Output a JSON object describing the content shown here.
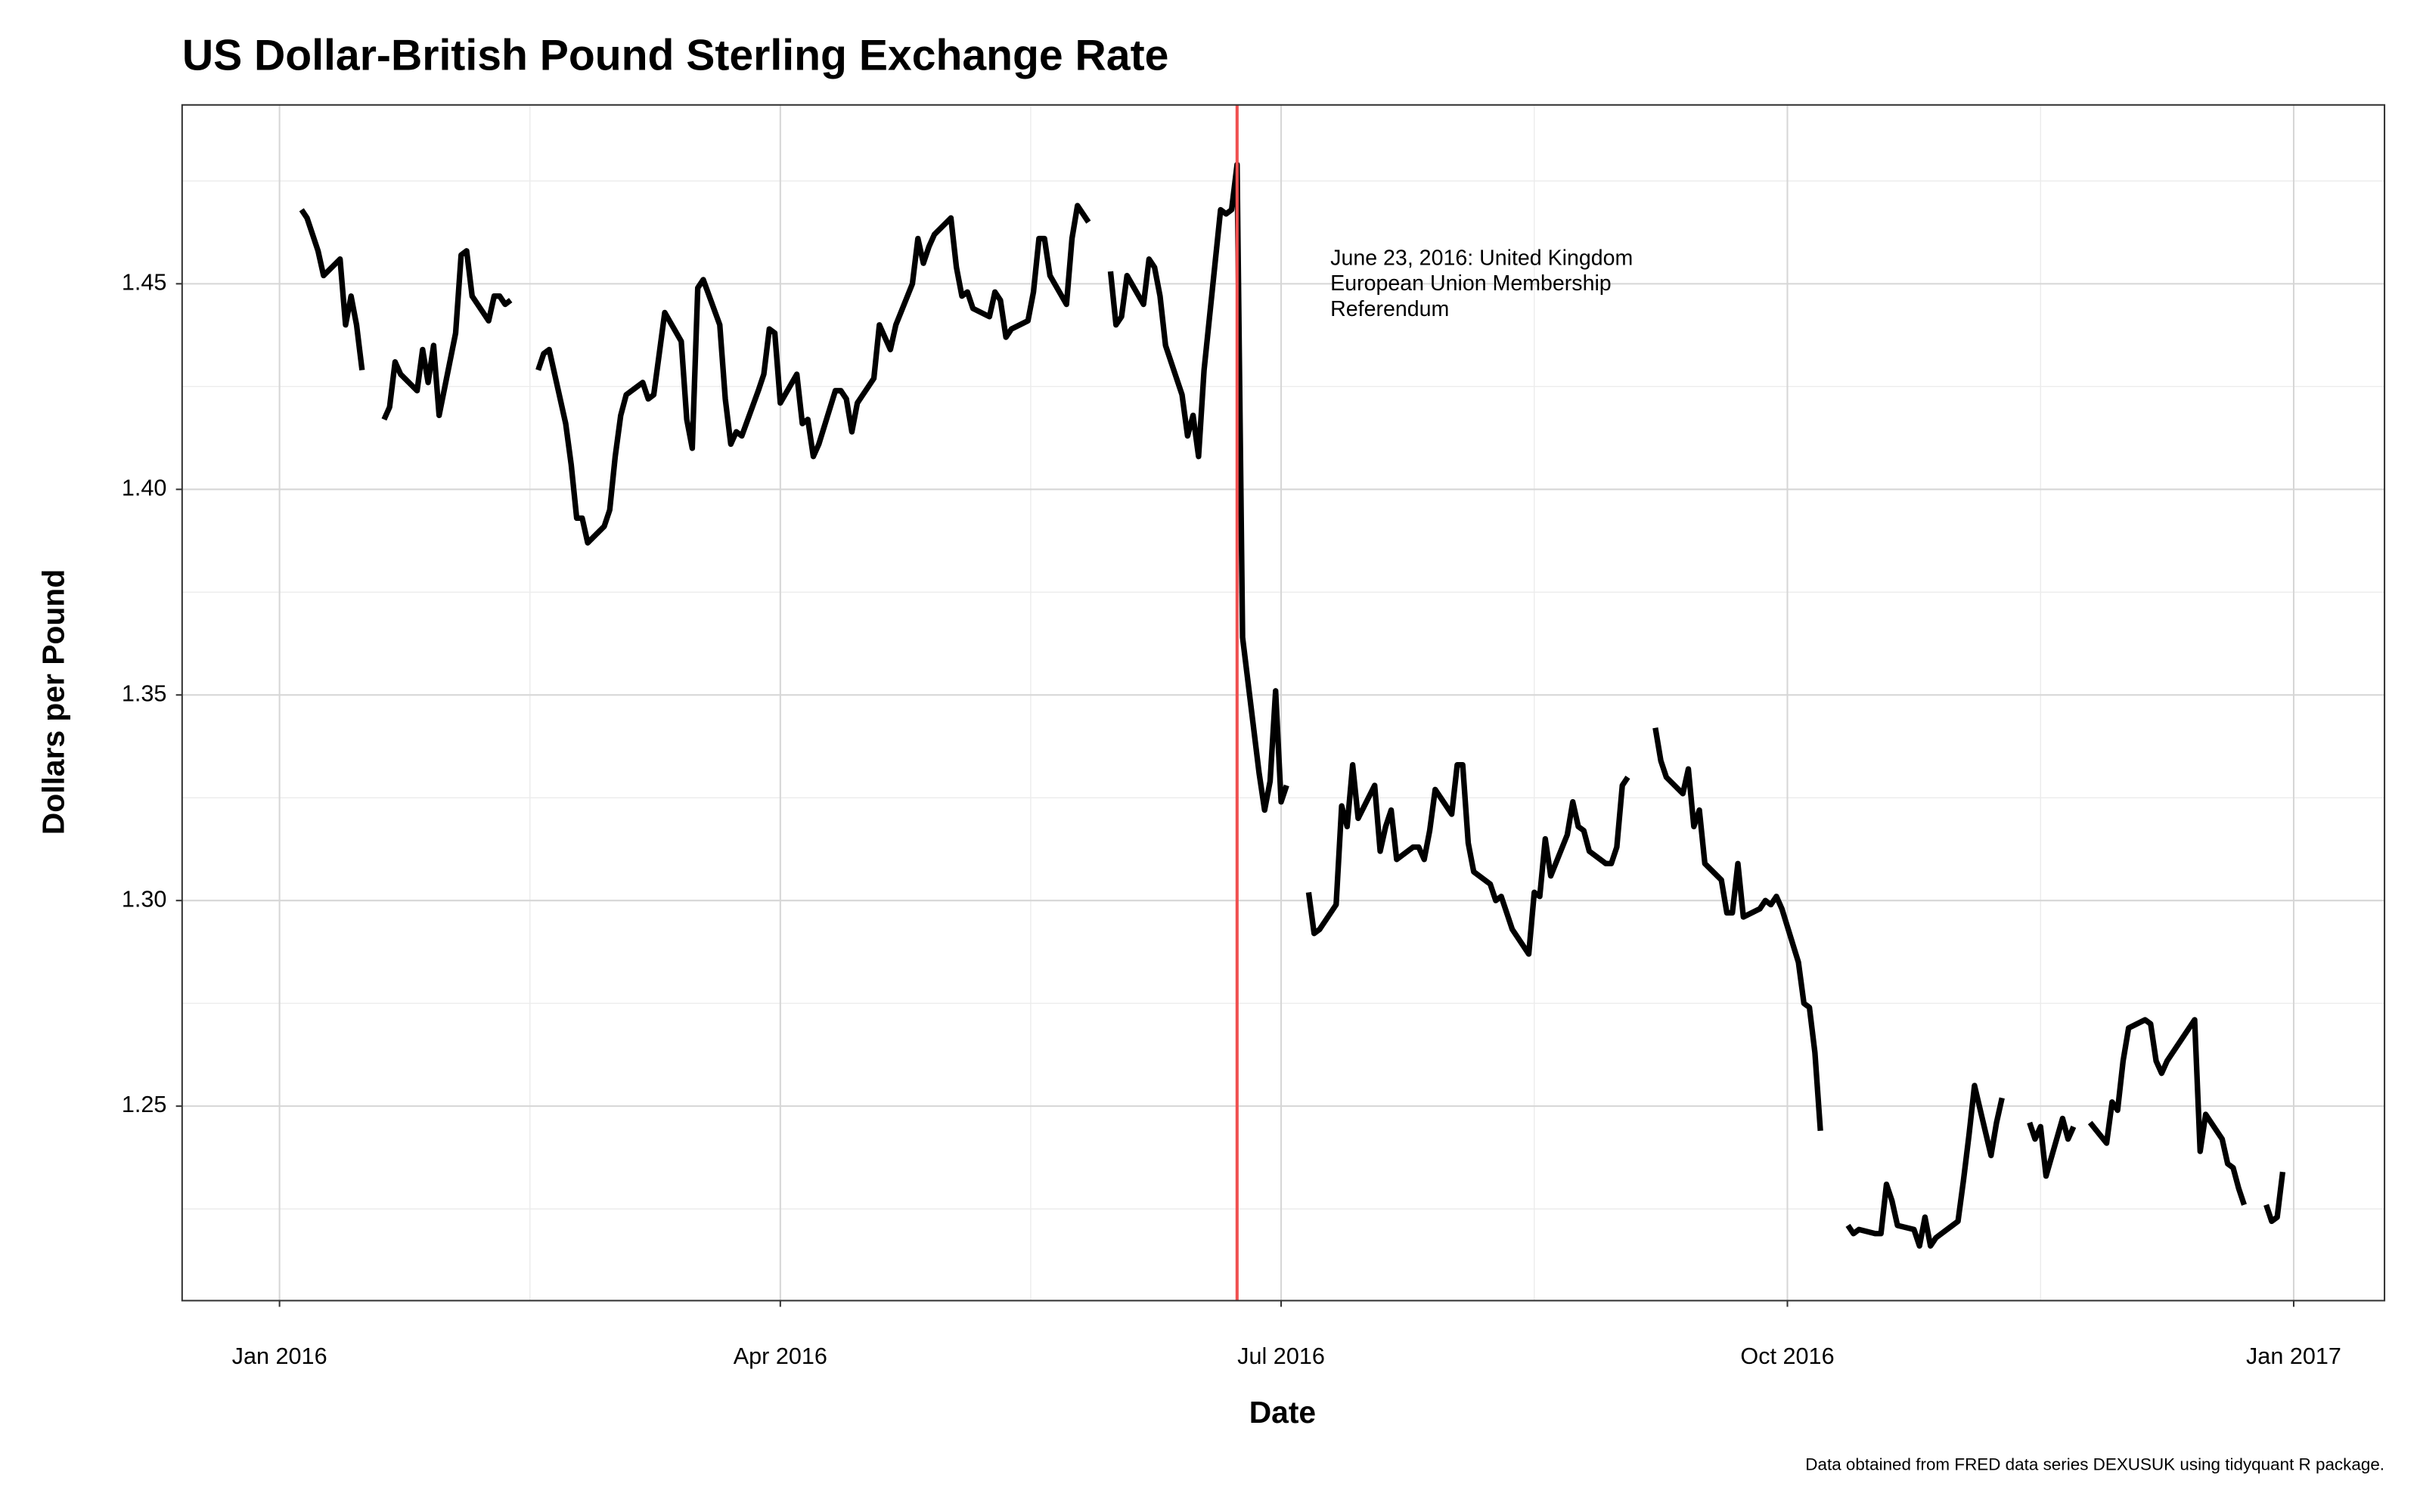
{
  "chart_data": {
    "type": "line",
    "title": "US Dollar-British Pound Sterling Exchange Rate",
    "x_label": "Date",
    "y_label": "Dollars per Pound",
    "caption": "Data obtained from FRED data series DEXUSUK using tidyquant R package.",
    "annotation": [
      "June 23, 2016: United Kingdom",
      "European Union Membership",
      "Referendum"
    ],
    "event_x": 174,
    "event_color": "#f05050",
    "grid": true,
    "xlim": [
      -17.7,
      382.5
    ],
    "xticks": [
      {
        "value": 0,
        "label": "Jan 2016"
      },
      {
        "value": 91,
        "label": "Apr 2016"
      },
      {
        "value": 182,
        "label": "Jul 2016"
      },
      {
        "value": 274,
        "label": "Oct 2016"
      },
      {
        "value": 366,
        "label": "Jan 2017"
      }
    ],
    "ylim": [
      1.2027,
      1.4935
    ],
    "yticks": [
      {
        "value": 1.25,
        "label": "1.25"
      },
      {
        "value": 1.3,
        "label": "1.30"
      },
      {
        "value": 1.35,
        "label": "1.35"
      },
      {
        "value": 1.4,
        "label": "1.40"
      },
      {
        "value": 1.45,
        "label": "1.45"
      }
    ],
    "series": [
      {
        "color": "#000000",
        "x": [
          4,
          5,
          6,
          7,
          8,
          11,
          12,
          13,
          14,
          15,
          18,
          19,
          20,
          21,
          22,
          25,
          26,
          27,
          28,
          29,
          32,
          33,
          34,
          35,
          38,
          39,
          40,
          41,
          42,
          46,
          47,
          48,
          49,
          52,
          53,
          54,
          55,
          56,
          59,
          60,
          61,
          62,
          63,
          66,
          67,
          68,
          69,
          70,
          73,
          74,
          75,
          76,
          77,
          80,
          81,
          82,
          83,
          84,
          87,
          88,
          89,
          90,
          91,
          94,
          95,
          96,
          97,
          98,
          101,
          102,
          103,
          104,
          105,
          108,
          109,
          110,
          111,
          112,
          115,
          116,
          117,
          118,
          119,
          122,
          123,
          124,
          125,
          126,
          129,
          130,
          131,
          132,
          133,
          136,
          137,
          138,
          139,
          140,
          143,
          144,
          145,
          146,
          147,
          150,
          151,
          152,
          153,
          154,
          157,
          158,
          159,
          160,
          161,
          164,
          165,
          166,
          167,
          168,
          171,
          172,
          173,
          174,
          175,
          178,
          179,
          180,
          181,
          182,
          183,
          186,
          187,
          188,
          189,
          192,
          193,
          194,
          195,
          196,
          199,
          200,
          201,
          202,
          203,
          206,
          207,
          208,
          209,
          210,
          213,
          214,
          215,
          216,
          217,
          220,
          221,
          222,
          223,
          224,
          227,
          228,
          229,
          230,
          231,
          234,
          235,
          236,
          237,
          238,
          241,
          242,
          243,
          244,
          245,
          249,
          250,
          251,
          252,
          255,
          256,
          257,
          258,
          259,
          262,
          263,
          264,
          265,
          266,
          269,
          270,
          271,
          272,
          273,
          276,
          277,
          278,
          279,
          280,
          284,
          285,
          286,
          287,
          290,
          291,
          292,
          293,
          294,
          297,
          298,
          299,
          300,
          301,
          304,
          305,
          306,
          307,
          308,
          311,
          312,
          313,
          315,
          318,
          319,
          320,
          321,
          324,
          325,
          326,
          328,
          329,
          332,
          333,
          334,
          335,
          336,
          339,
          340,
          341,
          342,
          343,
          346,
          347,
          348,
          349,
          350,
          353,
          354,
          355,
          356,
          357,
          360,
          361,
          362,
          363,
          364
        ],
        "values": [
          1.468,
          1.466,
          1.462,
          1.458,
          1.452,
          1.456,
          1.44,
          1.447,
          1.44,
          1.429,
          null,
          1.417,
          1.42,
          1.431,
          1.428,
          1.424,
          1.434,
          1.426,
          1.435,
          1.418,
          1.438,
          1.457,
          1.458,
          1.447,
          1.441,
          1.447,
          1.447,
          1.445,
          1.446,
          null,
          1.429,
          1.433,
          1.434,
          1.416,
          1.406,
          1.393,
          1.393,
          1.387,
          1.391,
          1.395,
          1.408,
          1.418,
          1.423,
          1.426,
          1.422,
          1.423,
          1.433,
          1.443,
          1.436,
          1.417,
          1.41,
          1.449,
          1.451,
          1.44,
          1.422,
          1.411,
          1.414,
          1.413,
          1.424,
          1.428,
          1.439,
          1.438,
          1.421,
          1.428,
          1.416,
          1.417,
          1.408,
          1.411,
          1.424,
          1.424,
          1.422,
          1.414,
          1.421,
          1.427,
          1.44,
          1.437,
          1.434,
          1.44,
          1.45,
          1.461,
          1.455,
          1.459,
          1.462,
          1.466,
          1.454,
          1.447,
          1.448,
          1.444,
          1.442,
          1.448,
          1.446,
          1.437,
          1.439,
          1.441,
          1.448,
          1.461,
          1.461,
          1.452,
          1.445,
          1.461,
          1.469,
          1.467,
          1.465,
          null,
          1.453,
          1.44,
          1.442,
          1.452,
          1.445,
          1.456,
          1.454,
          1.447,
          1.435,
          1.423,
          1.413,
          1.418,
          1.408,
          1.429,
          1.468,
          1.467,
          1.468,
          1.479,
          1.364,
          1.331,
          1.322,
          1.329,
          1.351,
          1.324,
          1.328,
          null,
          1.302,
          1.292,
          1.293,
          1.299,
          1.323,
          1.318,
          1.333,
          1.32,
          1.328,
          1.312,
          1.318,
          1.322,
          1.31,
          1.313,
          1.313,
          1.31,
          1.317,
          1.327,
          1.321,
          1.333,
          1.333,
          1.314,
          1.307,
          1.304,
          1.3,
          1.301,
          1.297,
          1.293,
          1.287,
          1.302,
          1.301,
          1.315,
          1.306,
          1.316,
          1.324,
          1.318,
          1.317,
          1.312,
          1.309,
          1.309,
          1.313,
          1.328,
          1.33,
          null,
          1.342,
          1.334,
          1.33,
          1.326,
          1.332,
          1.318,
          1.322,
          1.309,
          1.305,
          1.297,
          1.297,
          1.309,
          1.296,
          1.298,
          1.3,
          1.299,
          1.301,
          1.298,
          1.285,
          1.275,
          1.274,
          1.263,
          1.244,
          null,
          1.221,
          1.219,
          1.22,
          1.219,
          1.219,
          1.231,
          1.227,
          1.221,
          1.22,
          1.216,
          1.223,
          1.216,
          1.218,
          1.221,
          1.222,
          1.232,
          1.243,
          1.255,
          1.238,
          1.246,
          1.252,
          null,
          1.246,
          1.242,
          1.245,
          1.233,
          1.247,
          1.242,
          1.245,
          null,
          1.246,
          1.241,
          1.251,
          1.249,
          1.261,
          1.269,
          1.271,
          1.27,
          1.261,
          1.258,
          1.261,
          1.267,
          1.269,
          1.271,
          1.239,
          1.248,
          1.242,
          1.236,
          1.235,
          1.23,
          1.226,
          null,
          1.226,
          1.222,
          1.223,
          1.234
        ]
      }
    ]
  }
}
